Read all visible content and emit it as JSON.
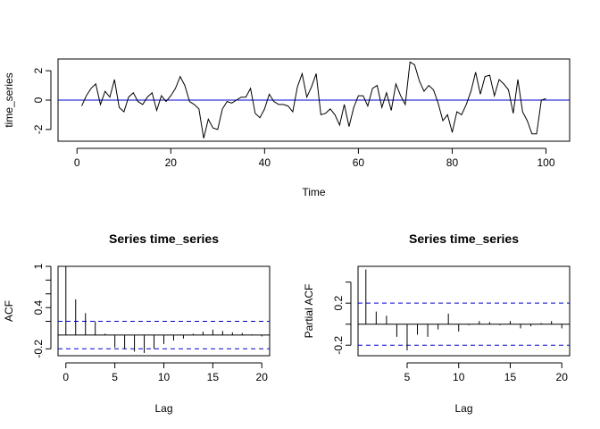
{
  "chart_data": [
    {
      "type": "line",
      "title": "",
      "xlabel": "Time",
      "ylabel": "time_series",
      "xlim": [
        0,
        101
      ],
      "ylim": [
        -2.8,
        2.8
      ],
      "x_ticks": [
        0,
        20,
        40,
        60,
        80,
        100
      ],
      "y_ticks": [
        -2,
        0,
        2
      ],
      "reference_line": {
        "y": 0,
        "color": "#0000CC"
      },
      "line_color": "#000000",
      "x": [
        1,
        2,
        3,
        4,
        5,
        6,
        7,
        8,
        9,
        10,
        11,
        12,
        13,
        14,
        15,
        16,
        17,
        18,
        19,
        20,
        21,
        22,
        23,
        24,
        25,
        26,
        27,
        28,
        29,
        30,
        31,
        32,
        33,
        34,
        35,
        36,
        37,
        38,
        39,
        40,
        41,
        42,
        43,
        44,
        45,
        46,
        47,
        48,
        49,
        50,
        51,
        52,
        53,
        54,
        55,
        56,
        57,
        58,
        59,
        60,
        61,
        62,
        63,
        64,
        65,
        66,
        67,
        68,
        69,
        70,
        71,
        72,
        73,
        74,
        75,
        76,
        77,
        78,
        79,
        80,
        81,
        82,
        83,
        84,
        85,
        86,
        87,
        88,
        89,
        90,
        91,
        92,
        93,
        94,
        95,
        96,
        97,
        98,
        99,
        100
      ],
      "values": [
        -0.4,
        0.3,
        0.8,
        1.1,
        -0.3,
        0.6,
        0.2,
        1.4,
        -0.5,
        -0.8,
        0.2,
        0.5,
        -0.1,
        -0.3,
        0.2,
        0.5,
        -0.7,
        0.3,
        -0.1,
        0.3,
        0.8,
        1.6,
        1.0,
        -0.1,
        -0.3,
        -0.6,
        -2.6,
        -1.3,
        -1.9,
        -2.0,
        -0.6,
        -0.1,
        -0.2,
        0.0,
        0.2,
        0.2,
        0.8,
        -0.9,
        -1.2,
        -0.6,
        0.4,
        -0.1,
        -0.3,
        -0.3,
        -0.4,
        -0.8,
        0.9,
        1.8,
        0.2,
        0.9,
        1.8,
        -1.0,
        -0.9,
        -0.6,
        -1.0,
        -1.7,
        -0.3,
        -1.8,
        -0.5,
        0.3,
        0.3,
        -0.4,
        0.8,
        1.0,
        -0.5,
        0.5,
        -0.7,
        1.1,
        0.3,
        -0.3,
        2.6,
        2.4,
        1.3,
        0.6,
        1.0,
        0.7,
        -0.2,
        -1.4,
        -1.0,
        -2.2,
        -0.8,
        -1.0,
        -0.3,
        0.6,
        1.9,
        0.4,
        1.6,
        1.7,
        0.3,
        1.4,
        1.1,
        0.7,
        -0.9,
        1.4,
        -0.8,
        -1.4,
        -2.3,
        -2.3,
        0.0,
        0.1
      ]
    },
    {
      "type": "bar",
      "title": "Series  time_series",
      "xlabel": "Lag",
      "ylabel": "ACF",
      "xlim": [
        0,
        20
      ],
      "ylim": [
        -0.3,
        1.0
      ],
      "x_ticks": [
        0,
        5,
        10,
        15,
        20
      ],
      "y_ticks": [
        -0.2,
        0.4,
        1.0
      ],
      "y_minor_ticks": [
        0.2,
        0.6,
        0.8
      ],
      "confidence_band": [
        0.2,
        -0.2
      ],
      "confidence_color": "#0000CC",
      "lags": [
        0,
        1,
        2,
        3,
        4,
        5,
        6,
        7,
        8,
        9,
        10,
        11,
        12,
        13,
        14,
        15,
        16,
        17,
        18,
        19,
        20
      ],
      "values": [
        1.0,
        0.52,
        0.32,
        0.2,
        0.02,
        -0.18,
        -0.2,
        -0.24,
        -0.26,
        -0.2,
        -0.13,
        -0.08,
        -0.05,
        0.02,
        0.05,
        0.08,
        0.06,
        0.04,
        0.03,
        0.01,
        -0.02
      ]
    },
    {
      "type": "bar",
      "title": "Series  time_series",
      "xlabel": "Lag",
      "ylabel": "Partial ACF",
      "xlim": [
        1,
        20
      ],
      "ylim": [
        -0.3,
        0.55
      ],
      "x_ticks": [
        5,
        10,
        15,
        20
      ],
      "y_ticks": [
        -0.2,
        0.2
      ],
      "y_minor_ticks": [
        0.0,
        0.4
      ],
      "confidence_band": [
        0.2,
        -0.2
      ],
      "confidence_color": "#0000CC",
      "lags": [
        1,
        2,
        3,
        4,
        5,
        6,
        7,
        8,
        9,
        10,
        11,
        12,
        13,
        14,
        15,
        16,
        17,
        18,
        19,
        20
      ],
      "values": [
        0.52,
        0.12,
        0.08,
        -0.12,
        -0.25,
        -0.1,
        -0.12,
        -0.05,
        0.1,
        -0.07,
        -0.01,
        0.03,
        0.02,
        -0.01,
        0.03,
        -0.04,
        -0.02,
        0.01,
        0.03,
        -0.04
      ]
    }
  ]
}
